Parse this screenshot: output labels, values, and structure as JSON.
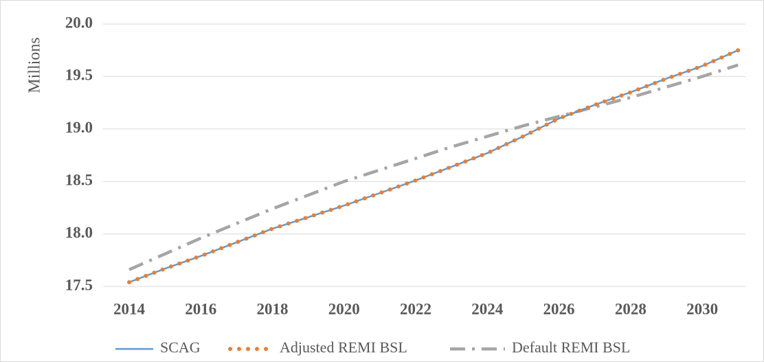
{
  "chart_data": {
    "type": "line",
    "y_label": "Millions",
    "categories": [
      "2014",
      null,
      "2016",
      null,
      "2018",
      null,
      "2020",
      null,
      "2022",
      null,
      "2024",
      null,
      "2026",
      null,
      "2028",
      null,
      "2030",
      null
    ],
    "series": [
      {
        "name": "SCAG",
        "color": "#5b9bd5",
        "style": "solid",
        "values": [
          17.54,
          17.67,
          17.79,
          17.92,
          18.05,
          18.16,
          18.27,
          18.39,
          18.51,
          18.64,
          18.77,
          18.93,
          19.1,
          19.23,
          19.35,
          19.48,
          19.6,
          19.75
        ]
      },
      {
        "name": "Adjusted REMI BSL",
        "color": "#ed7d31",
        "style": "dotted",
        "values": [
          17.54,
          17.67,
          17.79,
          17.92,
          18.05,
          18.16,
          18.27,
          18.39,
          18.51,
          18.64,
          18.77,
          18.93,
          19.1,
          19.23,
          19.35,
          19.48,
          19.6,
          19.75
        ]
      },
      {
        "name": "Default REMI BSL",
        "color": "#a5a5a5",
        "style": "dashdot",
        "values": [
          17.66,
          17.81,
          17.96,
          18.1,
          18.24,
          18.37,
          18.5,
          18.61,
          18.72,
          18.83,
          18.93,
          19.03,
          19.12,
          19.21,
          19.3,
          19.4,
          19.5,
          19.61
        ]
      }
    ],
    "ylim": [
      17.5,
      20.0
    ],
    "yticks": [
      17.5,
      {
        "value": 18.0,
        "label": "18.0"
      },
      18.5,
      {
        "value": 19.0,
        "label": "19.0"
      },
      19.5,
      {
        "value": 20.0,
        "label": "20.0"
      }
    ],
    "grid": true,
    "legend": "bottom"
  }
}
